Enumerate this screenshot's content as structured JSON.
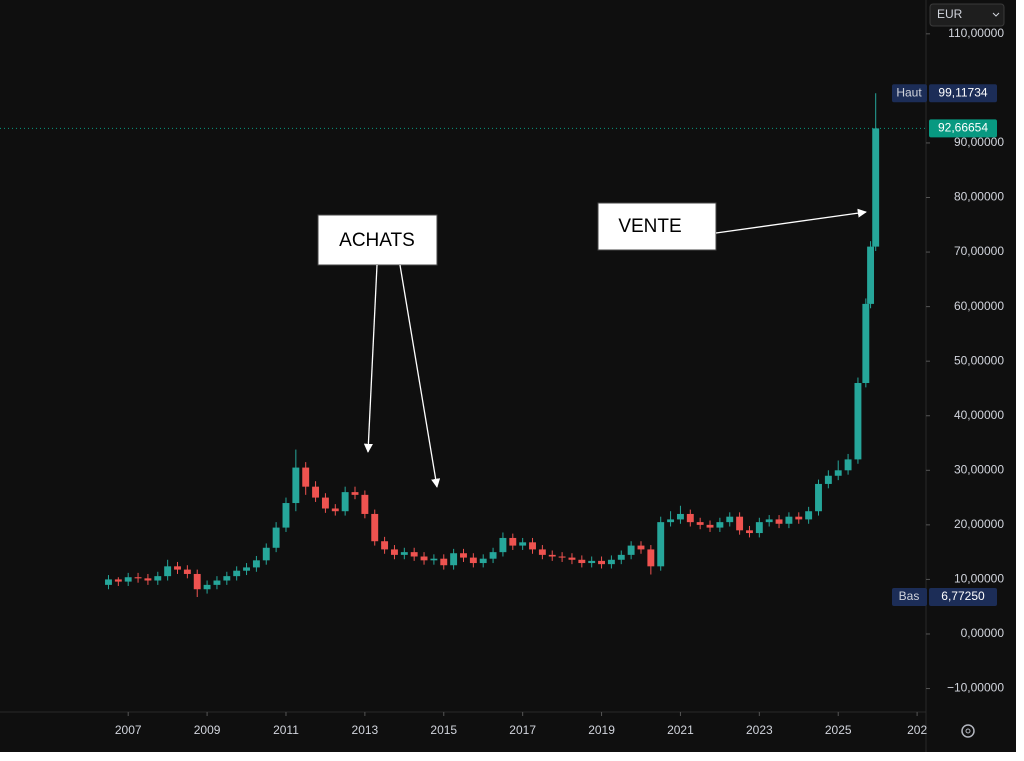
{
  "chart_data": {
    "type": "candlestick",
    "currency": "EUR",
    "x": [
      2006.5,
      2006.75,
      2007,
      2007.25,
      2007.5,
      2007.75,
      2008,
      2008.25,
      2008.5,
      2008.75,
      2009,
      2009.25,
      2009.5,
      2009.75,
      2010,
      2010.25,
      2010.5,
      2010.75,
      2011,
      2011.25,
      2011.5,
      2011.75,
      2012,
      2012.25,
      2012.5,
      2012.75,
      2013,
      2013.25,
      2013.5,
      2013.75,
      2014,
      2014.25,
      2014.5,
      2014.75,
      2015,
      2015.25,
      2015.5,
      2015.75,
      2016,
      2016.25,
      2016.5,
      2016.75,
      2017,
      2017.25,
      2017.5,
      2017.75,
      2018,
      2018.25,
      2018.5,
      2018.75,
      2019,
      2019.25,
      2019.5,
      2019.75,
      2020,
      2020.25,
      2020.5,
      2020.75,
      2021,
      2021.25,
      2021.5,
      2021.75,
      2022,
      2022.25,
      2022.5,
      2022.75,
      2023,
      2023.25,
      2023.5,
      2023.75,
      2024,
      2024.25,
      2024.5,
      2024.75,
      2025,
      2025.25,
      2025.5,
      2025.7,
      2025.82,
      2025.95
    ],
    "open": [
      9.0,
      10.0,
      9.6,
      10.4,
      10.2,
      9.8,
      10.6,
      12.4,
      11.8,
      11.0,
      8.2,
      9.0,
      9.8,
      10.6,
      11.6,
      12.2,
      13.5,
      15.8,
      19.5,
      24.0,
      30.5,
      27.0,
      25.0,
      23.0,
      22.5,
      26.0,
      25.5,
      22.0,
      17.0,
      15.5,
      14.5,
      15.0,
      14.2,
      13.5,
      13.8,
      12.6,
      14.8,
      14.0,
      13.0,
      13.8,
      15.0,
      17.6,
      16.2,
      16.8,
      15.5,
      14.5,
      14.2,
      14.0,
      13.6,
      13.0,
      13.4,
      12.8,
      13.6,
      14.5,
      16.2,
      15.5,
      12.4,
      20.5,
      21.0,
      22.0,
      20.5,
      20.0,
      19.5,
      20.5,
      21.5,
      19.0,
      18.5,
      20.5,
      21.0,
      20.2,
      21.5,
      21.0,
      22.5,
      27.5,
      29.0,
      30.0,
      32.0,
      46.0,
      60.5,
      71.0
    ],
    "high": [
      10.8,
      10.4,
      11.2,
      11.2,
      11.0,
      11.4,
      13.6,
      13.2,
      12.6,
      11.8,
      9.8,
      10.6,
      11.4,
      12.4,
      13.0,
      14.3,
      16.6,
      20.5,
      25.0,
      33.8,
      31.5,
      28.0,
      25.8,
      23.8,
      27.0,
      27.0,
      26.3,
      22.8,
      17.8,
      16.3,
      15.8,
      15.8,
      15.0,
      14.6,
      14.6,
      15.6,
      15.6,
      14.8,
      14.6,
      15.8,
      18.6,
      18.4,
      17.6,
      17.6,
      16.3,
      15.3,
      15.0,
      14.8,
      14.4,
      14.2,
      14.2,
      14.4,
      15.3,
      17.0,
      17.0,
      16.3,
      21.5,
      22.5,
      23.5,
      22.8,
      21.3,
      20.8,
      21.3,
      22.3,
      22.3,
      19.8,
      21.3,
      21.8,
      21.8,
      22.3,
      22.3,
      23.3,
      28.3,
      30.0,
      31.8,
      33.0,
      47.0,
      61.5,
      72.0,
      99.11734
    ],
    "low": [
      8.2,
      8.8,
      8.8,
      9.4,
      9.0,
      9.0,
      9.8,
      11.0,
      10.2,
      6.7725,
      7.4,
      8.2,
      9.0,
      9.8,
      10.8,
      11.4,
      12.7,
      15.0,
      18.7,
      22.5,
      25.5,
      24.2,
      22.2,
      21.7,
      21.7,
      24.7,
      21.2,
      16.2,
      14.7,
      13.7,
      13.7,
      13.4,
      12.7,
      12.7,
      11.8,
      11.8,
      13.2,
      12.2,
      12.2,
      13.0,
      14.2,
      15.4,
      15.4,
      14.7,
      13.7,
      13.4,
      13.2,
      12.8,
      12.2,
      12.2,
      12.0,
      12.0,
      12.8,
      13.7,
      14.7,
      10.9,
      11.6,
      19.7,
      20.2,
      19.7,
      19.2,
      18.7,
      18.7,
      19.7,
      18.2,
      17.7,
      17.7,
      19.7,
      19.4,
      19.4,
      20.2,
      20.2,
      21.7,
      26.7,
      28.2,
      29.2,
      31.2,
      45.2,
      59.7,
      70.2
    ],
    "close": [
      10.0,
      9.6,
      10.4,
      10.2,
      9.8,
      10.6,
      12.4,
      11.8,
      11.0,
      8.2,
      9.0,
      9.8,
      10.6,
      11.6,
      12.2,
      13.5,
      15.8,
      19.5,
      24.0,
      30.5,
      27.0,
      25.0,
      23.0,
      22.5,
      26.0,
      25.5,
      22.0,
      17.0,
      15.5,
      14.5,
      15.0,
      14.2,
      13.5,
      13.8,
      12.6,
      14.8,
      14.0,
      13.0,
      13.8,
      15.0,
      17.6,
      16.2,
      16.8,
      15.5,
      14.5,
      14.2,
      14.0,
      13.6,
      13.0,
      13.4,
      12.8,
      13.6,
      14.5,
      16.2,
      15.5,
      12.4,
      20.5,
      21.0,
      22.0,
      20.5,
      20.0,
      19.5,
      20.5,
      21.5,
      19.0,
      18.5,
      20.5,
      21.0,
      20.2,
      21.5,
      21.0,
      22.5,
      27.5,
      29.0,
      30.0,
      32.0,
      46.0,
      60.5,
      71.0,
      92.66654
    ],
    "up_color": "#26a69a",
    "down_color": "#ef5350",
    "xlim": [
      2003.75,
      2027.2
    ],
    "xticks": [
      2007,
      2009,
      2011,
      2013,
      2015,
      2017,
      2019,
      2021,
      2023,
      2025,
      {
        "value": 2027,
        "label": "202"
      }
    ],
    "ylim": [
      -14.3,
      116.2
    ],
    "yticks": [
      {
        "value": 110,
        "label": "110,00000"
      },
      {
        "value": 90,
        "label": "90,00000"
      },
      {
        "value": 80,
        "label": "80,00000"
      },
      {
        "value": 70,
        "label": "70,00000"
      },
      {
        "value": 60,
        "label": "60,00000"
      },
      {
        "value": 50,
        "label": "50,00000"
      },
      {
        "value": 40,
        "label": "40,00000"
      },
      {
        "value": 30,
        "label": "30,00000"
      },
      {
        "value": 20,
        "label": "20,00000"
      },
      {
        "value": 10,
        "label": "10,00000"
      },
      {
        "value": 0,
        "label": "0,00000"
      },
      {
        "value": -10,
        "label": "−10,00000"
      }
    ],
    "high_marker": {
      "name": "Haut",
      "value": 99.11734,
      "label": "99,11734"
    },
    "last_price": {
      "value": 92.66654,
      "label": "92,66654",
      "color": "#089981"
    },
    "low_marker": {
      "name": "Bas",
      "value": 6.7725,
      "label": "6,77250"
    },
    "annotations": [
      "ACHATS",
      "VENTE"
    ]
  }
}
